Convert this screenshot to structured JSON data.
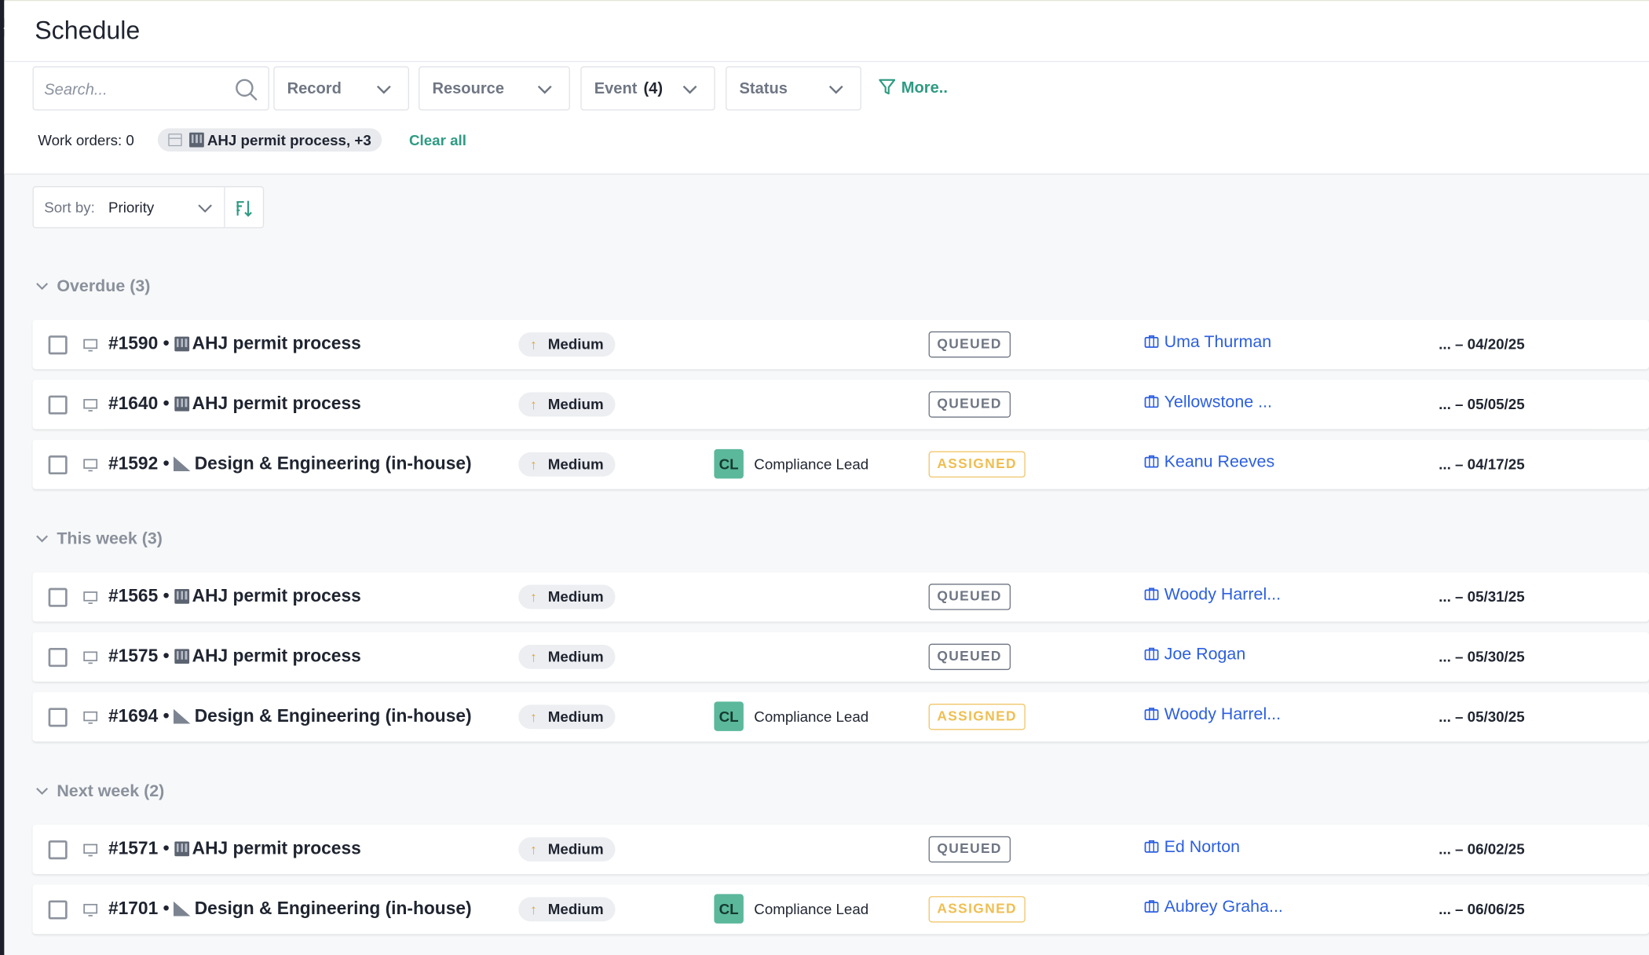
{
  "page": {
    "title": "Schedule"
  },
  "filters": {
    "search_placeholder": "Search...",
    "record": "Record",
    "resource": "Resource",
    "event": "Event",
    "event_count": "(4)",
    "status": "Status",
    "more": "More.."
  },
  "summary": {
    "work_orders": "Work orders: 0",
    "chip": "AHJ permit process, +3",
    "clear_all": "Clear all"
  },
  "sort": {
    "label": "Sort by:",
    "value": "Priority"
  },
  "groups": [
    {
      "header": "Overdue (3)",
      "rows": [
        {
          "id": "#1590 •",
          "title": "AHJ permit process",
          "kind": "building",
          "priority": "Medium",
          "role_badge": "",
          "role": "",
          "status": "QUEUED",
          "assignee": "Uma Thurman",
          "due": "... – 04/20/25"
        },
        {
          "id": "#1640 •",
          "title": "AHJ permit process",
          "kind": "building",
          "priority": "Medium",
          "role_badge": "",
          "role": "",
          "status": "QUEUED",
          "assignee": "Yellowstone ...",
          "due": "... – 05/05/25"
        },
        {
          "id": "#1592 •",
          "title": "Design & Engineering (in-house)",
          "kind": "triangle",
          "priority": "Medium",
          "role_badge": "CL",
          "role": "Compliance Lead",
          "status": "ASSIGNED",
          "assignee": "Keanu Reeves",
          "due": "... – 04/17/25"
        }
      ]
    },
    {
      "header": "This week (3)",
      "rows": [
        {
          "id": "#1565 •",
          "title": "AHJ permit process",
          "kind": "building",
          "priority": "Medium",
          "role_badge": "",
          "role": "",
          "status": "QUEUED",
          "assignee": "Woody Harrel...",
          "due": "... – 05/31/25"
        },
        {
          "id": "#1575 •",
          "title": "AHJ permit process",
          "kind": "building",
          "priority": "Medium",
          "role_badge": "",
          "role": "",
          "status": "QUEUED",
          "assignee": "Joe Rogan",
          "due": "... – 05/30/25"
        },
        {
          "id": "#1694 •",
          "title": "Design & Engineering (in-house)",
          "kind": "triangle",
          "priority": "Medium",
          "role_badge": "CL",
          "role": "Compliance Lead",
          "status": "ASSIGNED",
          "assignee": "Woody Harrel...",
          "due": "... – 05/30/25"
        }
      ]
    },
    {
      "header": "Next week (2)",
      "rows": [
        {
          "id": "#1571 •",
          "title": "AHJ permit process",
          "kind": "building",
          "priority": "Medium",
          "role_badge": "",
          "role": "",
          "status": "QUEUED",
          "assignee": "Ed Norton",
          "due": "... – 06/02/25"
        },
        {
          "id": "#1701 •",
          "title": "Design & Engineering (in-house)",
          "kind": "triangle",
          "priority": "Medium",
          "role_badge": "CL",
          "role": "Compliance Lead",
          "status": "ASSIGNED",
          "assignee": "Aubrey Graha...",
          "due": "... – 06/06/25"
        }
      ]
    }
  ],
  "colors": {
    "accent": "#2e9b82",
    "link": "#2c5fe0",
    "queued": "#6f7683",
    "assigned": "#efbe52",
    "priority_arrow": "#e0a63a",
    "avatar": "#5bb89b"
  }
}
